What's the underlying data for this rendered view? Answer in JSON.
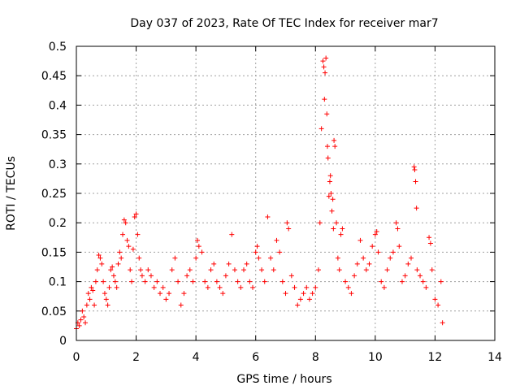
{
  "chart_data": {
    "type": "scatter",
    "title": "Day 037 of 2023, Rate Of TEC Index for receiver mar7",
    "xlabel": "GPS time / hours",
    "ylabel": "ROTI / TECUs",
    "xlim": [
      0,
      14
    ],
    "ylim": [
      0,
      0.5
    ],
    "x_ticks": [
      "0",
      "2",
      "4",
      "6",
      "8",
      "10",
      "12",
      "14"
    ],
    "y_ticks": [
      "0",
      "0.05",
      "0.1",
      "0.15",
      "0.2",
      "0.25",
      "0.3",
      "0.35",
      "0.4",
      "0.45",
      "0.5"
    ],
    "x_tick_values": [
      0,
      2,
      4,
      6,
      8,
      10,
      12,
      14
    ],
    "y_tick_values": [
      0,
      0.05,
      0.1,
      0.15,
      0.2,
      0.25,
      0.3,
      0.35,
      0.4,
      0.45,
      0.5
    ],
    "grid": true,
    "marker": "+",
    "color": "#ff0000",
    "series": [
      {
        "points": [
          [
            0.0,
            0.02
          ],
          [
            0.05,
            0.03
          ],
          [
            0.1,
            0.025
          ],
          [
            0.15,
            0.035
          ],
          [
            0.2,
            0.05
          ],
          [
            0.25,
            0.04
          ],
          [
            0.3,
            0.03
          ],
          [
            0.35,
            0.06
          ],
          [
            0.4,
            0.08
          ],
          [
            0.45,
            0.07
          ],
          [
            0.5,
            0.09
          ],
          [
            0.55,
            0.085
          ],
          [
            0.6,
            0.06
          ],
          [
            0.65,
            0.1
          ],
          [
            0.7,
            0.12
          ],
          [
            0.75,
            0.145
          ],
          [
            0.8,
            0.14
          ],
          [
            0.85,
            0.13
          ],
          [
            0.9,
            0.1
          ],
          [
            0.95,
            0.08
          ],
          [
            1.0,
            0.07
          ],
          [
            1.05,
            0.06
          ],
          [
            1.1,
            0.09
          ],
          [
            1.15,
            0.12
          ],
          [
            1.2,
            0.125
          ],
          [
            1.25,
            0.11
          ],
          [
            1.3,
            0.1
          ],
          [
            1.35,
            0.09
          ],
          [
            1.4,
            0.13
          ],
          [
            1.45,
            0.15
          ],
          [
            1.5,
            0.14
          ],
          [
            1.55,
            0.18
          ],
          [
            1.6,
            0.205
          ],
          [
            1.65,
            0.2
          ],
          [
            1.7,
            0.17
          ],
          [
            1.75,
            0.16
          ],
          [
            1.8,
            0.12
          ],
          [
            1.85,
            0.1
          ],
          [
            1.9,
            0.155
          ],
          [
            1.95,
            0.21
          ],
          [
            2.0,
            0.215
          ],
          [
            2.05,
            0.18
          ],
          [
            2.1,
            0.14
          ],
          [
            2.15,
            0.12
          ],
          [
            2.2,
            0.11
          ],
          [
            2.3,
            0.1
          ],
          [
            2.4,
            0.12
          ],
          [
            2.5,
            0.11
          ],
          [
            2.6,
            0.09
          ],
          [
            2.7,
            0.1
          ],
          [
            2.8,
            0.08
          ],
          [
            2.9,
            0.09
          ],
          [
            3.0,
            0.07
          ],
          [
            3.1,
            0.08
          ],
          [
            3.2,
            0.12
          ],
          [
            3.3,
            0.14
          ],
          [
            3.4,
            0.1
          ],
          [
            3.5,
            0.06
          ],
          [
            3.6,
            0.08
          ],
          [
            3.7,
            0.11
          ],
          [
            3.8,
            0.12
          ],
          [
            3.9,
            0.1
          ],
          [
            4.0,
            0.14
          ],
          [
            4.05,
            0.17
          ],
          [
            4.1,
            0.16
          ],
          [
            4.2,
            0.15
          ],
          [
            4.3,
            0.1
          ],
          [
            4.4,
            0.09
          ],
          [
            4.5,
            0.12
          ],
          [
            4.6,
            0.13
          ],
          [
            4.7,
            0.1
          ],
          [
            4.8,
            0.09
          ],
          [
            4.9,
            0.08
          ],
          [
            5.0,
            0.11
          ],
          [
            5.1,
            0.13
          ],
          [
            5.2,
            0.18
          ],
          [
            5.3,
            0.12
          ],
          [
            5.4,
            0.1
          ],
          [
            5.5,
            0.09
          ],
          [
            5.6,
            0.12
          ],
          [
            5.7,
            0.13
          ],
          [
            5.8,
            0.1
          ],
          [
            5.9,
            0.09
          ],
          [
            6.0,
            0.15
          ],
          [
            6.05,
            0.16
          ],
          [
            6.1,
            0.14
          ],
          [
            6.2,
            0.12
          ],
          [
            6.3,
            0.1
          ],
          [
            6.4,
            0.21
          ],
          [
            6.5,
            0.14
          ],
          [
            6.6,
            0.12
          ],
          [
            6.7,
            0.17
          ],
          [
            6.8,
            0.15
          ],
          [
            6.9,
            0.1
          ],
          [
            7.0,
            0.08
          ],
          [
            7.05,
            0.2
          ],
          [
            7.1,
            0.19
          ],
          [
            7.2,
            0.11
          ],
          [
            7.3,
            0.09
          ],
          [
            7.4,
            0.06
          ],
          [
            7.5,
            0.07
          ],
          [
            7.6,
            0.08
          ],
          [
            7.7,
            0.09
          ],
          [
            7.8,
            0.07
          ],
          [
            7.9,
            0.08
          ],
          [
            8.0,
            0.09
          ],
          [
            8.1,
            0.12
          ],
          [
            8.15,
            0.2
          ],
          [
            8.2,
            0.36
          ],
          [
            8.25,
            0.475
          ],
          [
            8.28,
            0.465
          ],
          [
            8.3,
            0.41
          ],
          [
            8.32,
            0.455
          ],
          [
            8.35,
            0.48
          ],
          [
            8.38,
            0.385
          ],
          [
            8.4,
            0.33
          ],
          [
            8.42,
            0.31
          ],
          [
            8.45,
            0.245
          ],
          [
            8.48,
            0.27
          ],
          [
            8.5,
            0.28
          ],
          [
            8.52,
            0.25
          ],
          [
            8.55,
            0.22
          ],
          [
            8.58,
            0.24
          ],
          [
            8.6,
            0.19
          ],
          [
            8.62,
            0.34
          ],
          [
            8.65,
            0.33
          ],
          [
            8.7,
            0.2
          ],
          [
            8.75,
            0.14
          ],
          [
            8.8,
            0.12
          ],
          [
            8.85,
            0.18
          ],
          [
            8.9,
            0.19
          ],
          [
            9.0,
            0.1
          ],
          [
            9.1,
            0.09
          ],
          [
            9.2,
            0.08
          ],
          [
            9.3,
            0.11
          ],
          [
            9.4,
            0.13
          ],
          [
            9.5,
            0.17
          ],
          [
            9.6,
            0.14
          ],
          [
            9.7,
            0.12
          ],
          [
            9.8,
            0.13
          ],
          [
            9.9,
            0.16
          ],
          [
            10.0,
            0.18
          ],
          [
            10.05,
            0.185
          ],
          [
            10.1,
            0.15
          ],
          [
            10.2,
            0.1
          ],
          [
            10.3,
            0.09
          ],
          [
            10.4,
            0.12
          ],
          [
            10.5,
            0.14
          ],
          [
            10.6,
            0.15
          ],
          [
            10.7,
            0.2
          ],
          [
            10.75,
            0.19
          ],
          [
            10.8,
            0.16
          ],
          [
            10.9,
            0.1
          ],
          [
            11.0,
            0.11
          ],
          [
            11.1,
            0.13
          ],
          [
            11.2,
            0.14
          ],
          [
            11.3,
            0.295
          ],
          [
            11.32,
            0.29
          ],
          [
            11.35,
            0.27
          ],
          [
            11.38,
            0.225
          ],
          [
            11.4,
            0.12
          ],
          [
            11.5,
            0.11
          ],
          [
            11.6,
            0.1
          ],
          [
            11.7,
            0.09
          ],
          [
            11.8,
            0.175
          ],
          [
            11.85,
            0.165
          ],
          [
            11.9,
            0.12
          ],
          [
            12.0,
            0.07
          ],
          [
            12.1,
            0.06
          ],
          [
            12.2,
            0.1
          ],
          [
            12.25,
            0.03
          ]
        ]
      }
    ]
  }
}
